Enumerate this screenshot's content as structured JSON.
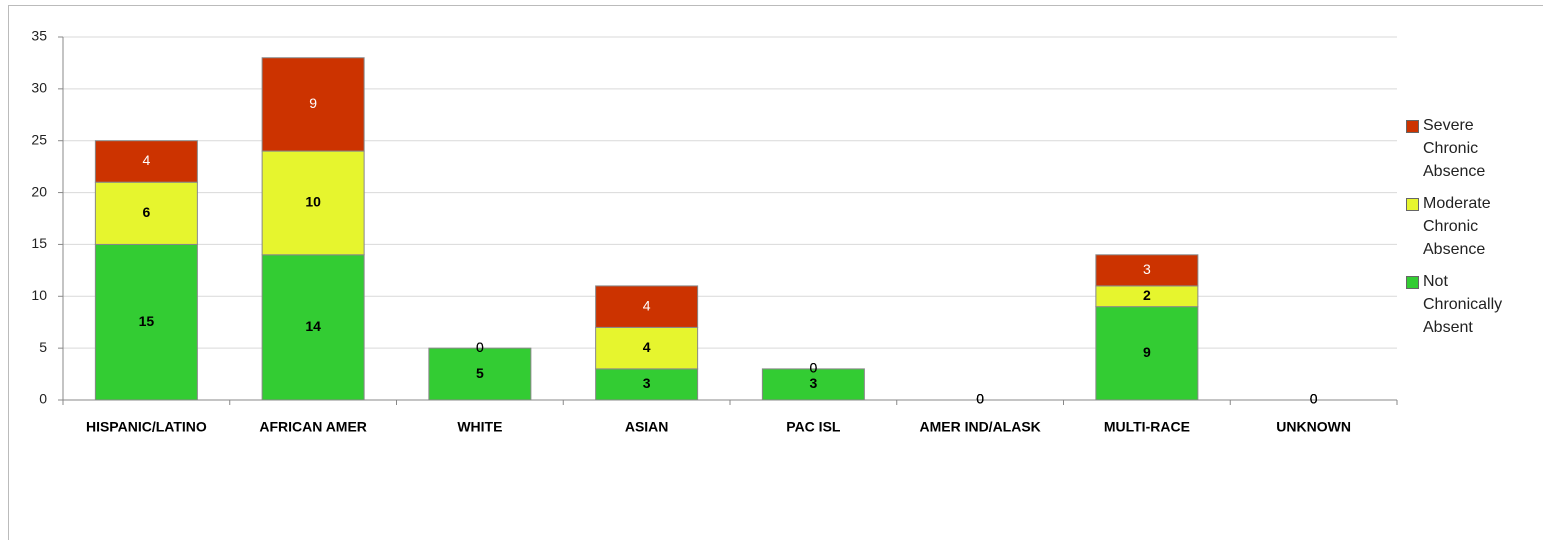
{
  "chart_data": {
    "type": "bar",
    "stacked": true,
    "categories": [
      "HISPANIC/LATINO",
      "AFRICAN AMER",
      "WHITE",
      "ASIAN",
      "PAC ISL",
      "AMER IND/ALASK",
      "MULTI-RACE",
      "UNKNOWN"
    ],
    "series": [
      {
        "name": "Not Chronically Absent",
        "color": "#33cc33",
        "values": [
          15,
          14,
          5,
          3,
          3,
          0,
          9,
          0
        ]
      },
      {
        "name": "Moderate Chronic Absence",
        "color": "#e6f52e",
        "values": [
          6,
          10,
          0,
          4,
          0,
          0,
          2,
          0
        ]
      },
      {
        "name": "Severe Chronic Absence",
        "color": "#cc3300",
        "values": [
          4,
          9,
          0,
          4,
          0,
          0,
          3,
          0
        ]
      }
    ],
    "ylim": [
      0,
      35
    ],
    "yticks": [
      0,
      5,
      10,
      15,
      20,
      25,
      30,
      35
    ],
    "grid": true,
    "legend": "right"
  }
}
